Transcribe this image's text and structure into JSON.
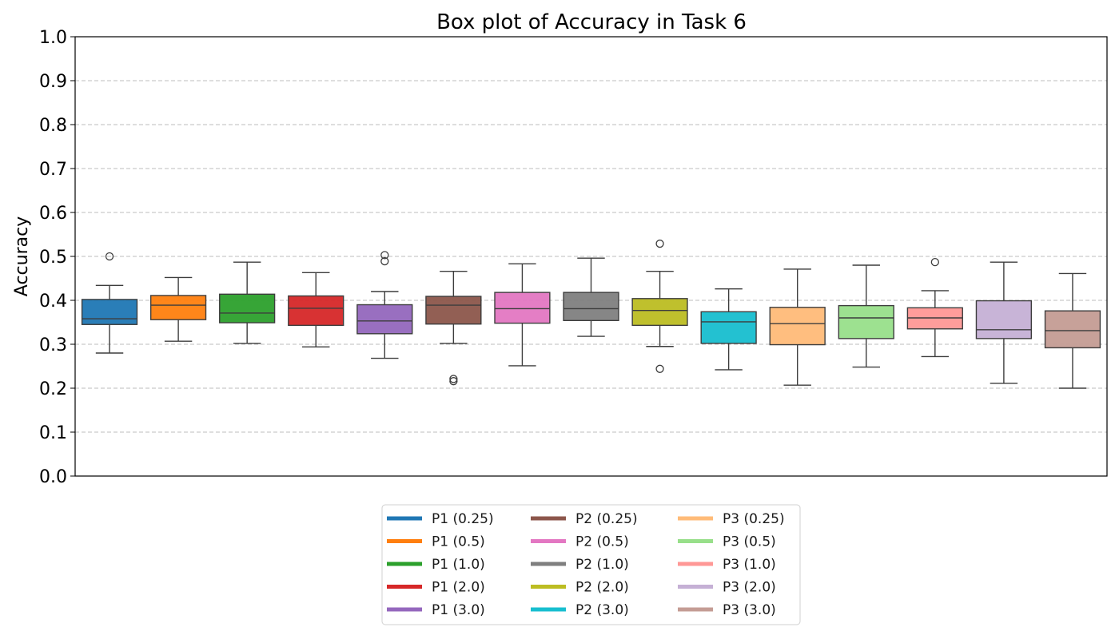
{
  "chart_data": {
    "type": "box",
    "title": "Box plot of Accuracy in Task 6",
    "xlabel": "",
    "ylabel": "Accuracy",
    "ylim": [
      0.0,
      1.0
    ],
    "yticks": [
      "0.0",
      "0.1",
      "0.2",
      "0.3",
      "0.4",
      "0.5",
      "0.6",
      "0.7",
      "0.8",
      "0.9",
      "1.0"
    ],
    "grid": "horizontal dashed",
    "legend_position": "bottom-center, 3 columns",
    "series": [
      {
        "name": "P1 (0.25)",
        "color": "#1f77b4",
        "whisker_low": 0.28,
        "q1": 0.345,
        "median": 0.358,
        "q3": 0.402,
        "whisker_high": 0.434,
        "outliers": [
          0.5
        ]
      },
      {
        "name": "P1 (0.5)",
        "color": "#ff7f0e",
        "whisker_low": 0.307,
        "q1": 0.356,
        "median": 0.389,
        "q3": 0.411,
        "whisker_high": 0.452,
        "outliers": []
      },
      {
        "name": "P1 (1.0)",
        "color": "#2ca02c",
        "whisker_low": 0.302,
        "q1": 0.349,
        "median": 0.371,
        "q3": 0.414,
        "whisker_high": 0.487,
        "outliers": []
      },
      {
        "name": "P1 (2.0)",
        "color": "#d62728",
        "whisker_low": 0.294,
        "q1": 0.343,
        "median": 0.382,
        "q3": 0.41,
        "whisker_high": 0.463,
        "outliers": []
      },
      {
        "name": "P1 (3.0)",
        "color": "#9467bd",
        "whisker_low": 0.268,
        "q1": 0.324,
        "median": 0.353,
        "q3": 0.39,
        "whisker_high": 0.42,
        "outliers": [
          0.489,
          0.503
        ]
      },
      {
        "name": "P2 (0.25)",
        "color": "#8c564b",
        "whisker_low": 0.302,
        "q1": 0.346,
        "median": 0.389,
        "q3": 0.409,
        "whisker_high": 0.466,
        "outliers": [
          0.216,
          0.221
        ]
      },
      {
        "name": "P2 (0.5)",
        "color": "#e377c2",
        "whisker_low": 0.251,
        "q1": 0.348,
        "median": 0.381,
        "q3": 0.418,
        "whisker_high": 0.483,
        "outliers": []
      },
      {
        "name": "P2 (1.0)",
        "color": "#7f7f7f",
        "whisker_low": 0.318,
        "q1": 0.354,
        "median": 0.381,
        "q3": 0.418,
        "whisker_high": 0.496,
        "outliers": []
      },
      {
        "name": "P2 (2.0)",
        "color": "#bcbd22",
        "whisker_low": 0.295,
        "q1": 0.343,
        "median": 0.377,
        "q3": 0.404,
        "whisker_high": 0.466,
        "outliers": [
          0.244,
          0.529
        ]
      },
      {
        "name": "P2 (3.0)",
        "color": "#17becf",
        "whisker_low": 0.242,
        "q1": 0.302,
        "median": 0.351,
        "q3": 0.374,
        "whisker_high": 0.426,
        "outliers": []
      },
      {
        "name": "P3 (0.25)",
        "color": "#ffbb78",
        "whisker_low": 0.207,
        "q1": 0.299,
        "median": 0.347,
        "q3": 0.384,
        "whisker_high": 0.471,
        "outliers": []
      },
      {
        "name": "P3 (0.5)",
        "color": "#98df8a",
        "whisker_low": 0.248,
        "q1": 0.313,
        "median": 0.36,
        "q3": 0.388,
        "whisker_high": 0.48,
        "outliers": []
      },
      {
        "name": "P3 (1.0)",
        "color": "#ff9896",
        "whisker_low": 0.272,
        "q1": 0.335,
        "median": 0.36,
        "q3": 0.383,
        "whisker_high": 0.422,
        "outliers": [
          0.487
        ]
      },
      {
        "name": "P3 (2.0)",
        "color": "#c5b0d5",
        "whisker_low": 0.211,
        "q1": 0.313,
        "median": 0.333,
        "q3": 0.399,
        "whisker_high": 0.487,
        "outliers": []
      },
      {
        "name": "P3 (3.0)",
        "color": "#c49c94",
        "whisker_low": 0.2,
        "q1": 0.292,
        "median": 0.331,
        "q3": 0.376,
        "whisker_high": 0.461,
        "outliers": []
      }
    ]
  }
}
